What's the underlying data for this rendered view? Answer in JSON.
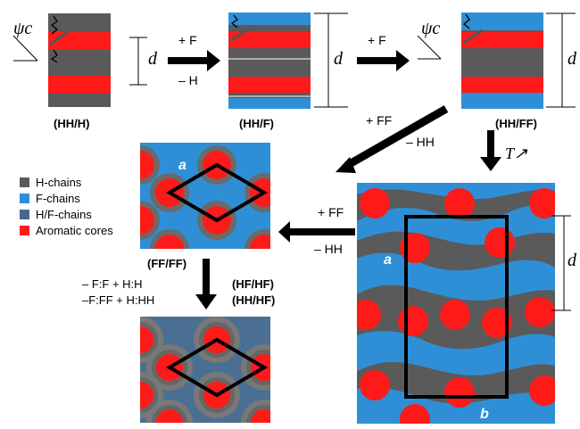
{
  "colors": {
    "h_chains": "#5a5a5a",
    "h_chains_ring": "#7a7a7a",
    "f_chains": "#2f8fd6",
    "hf_chains": "#4a6f93",
    "aromatic": "#ff1a1a",
    "white": "#ffffff",
    "black": "#000000"
  },
  "labels": {
    "tilt_symbol": "ψc",
    "d": "d",
    "plus_f_1": "+ F",
    "minus_h": "– H",
    "plus_f_2": "+ F",
    "hh_h": "(HH/H)",
    "hh_f": "(HH/F)",
    "hh_ff": "(HH/FF)",
    "plus_ff_1": "+ FF",
    "minus_hh_1": "– HH",
    "t_up": "T↗",
    "plus_ff_2": "+ FF",
    "minus_hh_2": "– HH",
    "ff_ff": "(FF/FF)",
    "minus_ff_h": "– F:F + H:H",
    "minus_ff_hh": "–F:FF + H:HH",
    "hf_hf": "(HF/HF)",
    "hh_hf": "(HH/HF)",
    "a": "a",
    "b": "b"
  },
  "legend": [
    {
      "label": "H-chains",
      "color": "#5a5a5a"
    },
    {
      "label": "F-chains",
      "color": "#2f8fd6"
    },
    {
      "label": "H/F-chains",
      "color": "#4a6f93"
    },
    {
      "label": "Aromatic cores",
      "color": "#ff1a1a"
    }
  ]
}
